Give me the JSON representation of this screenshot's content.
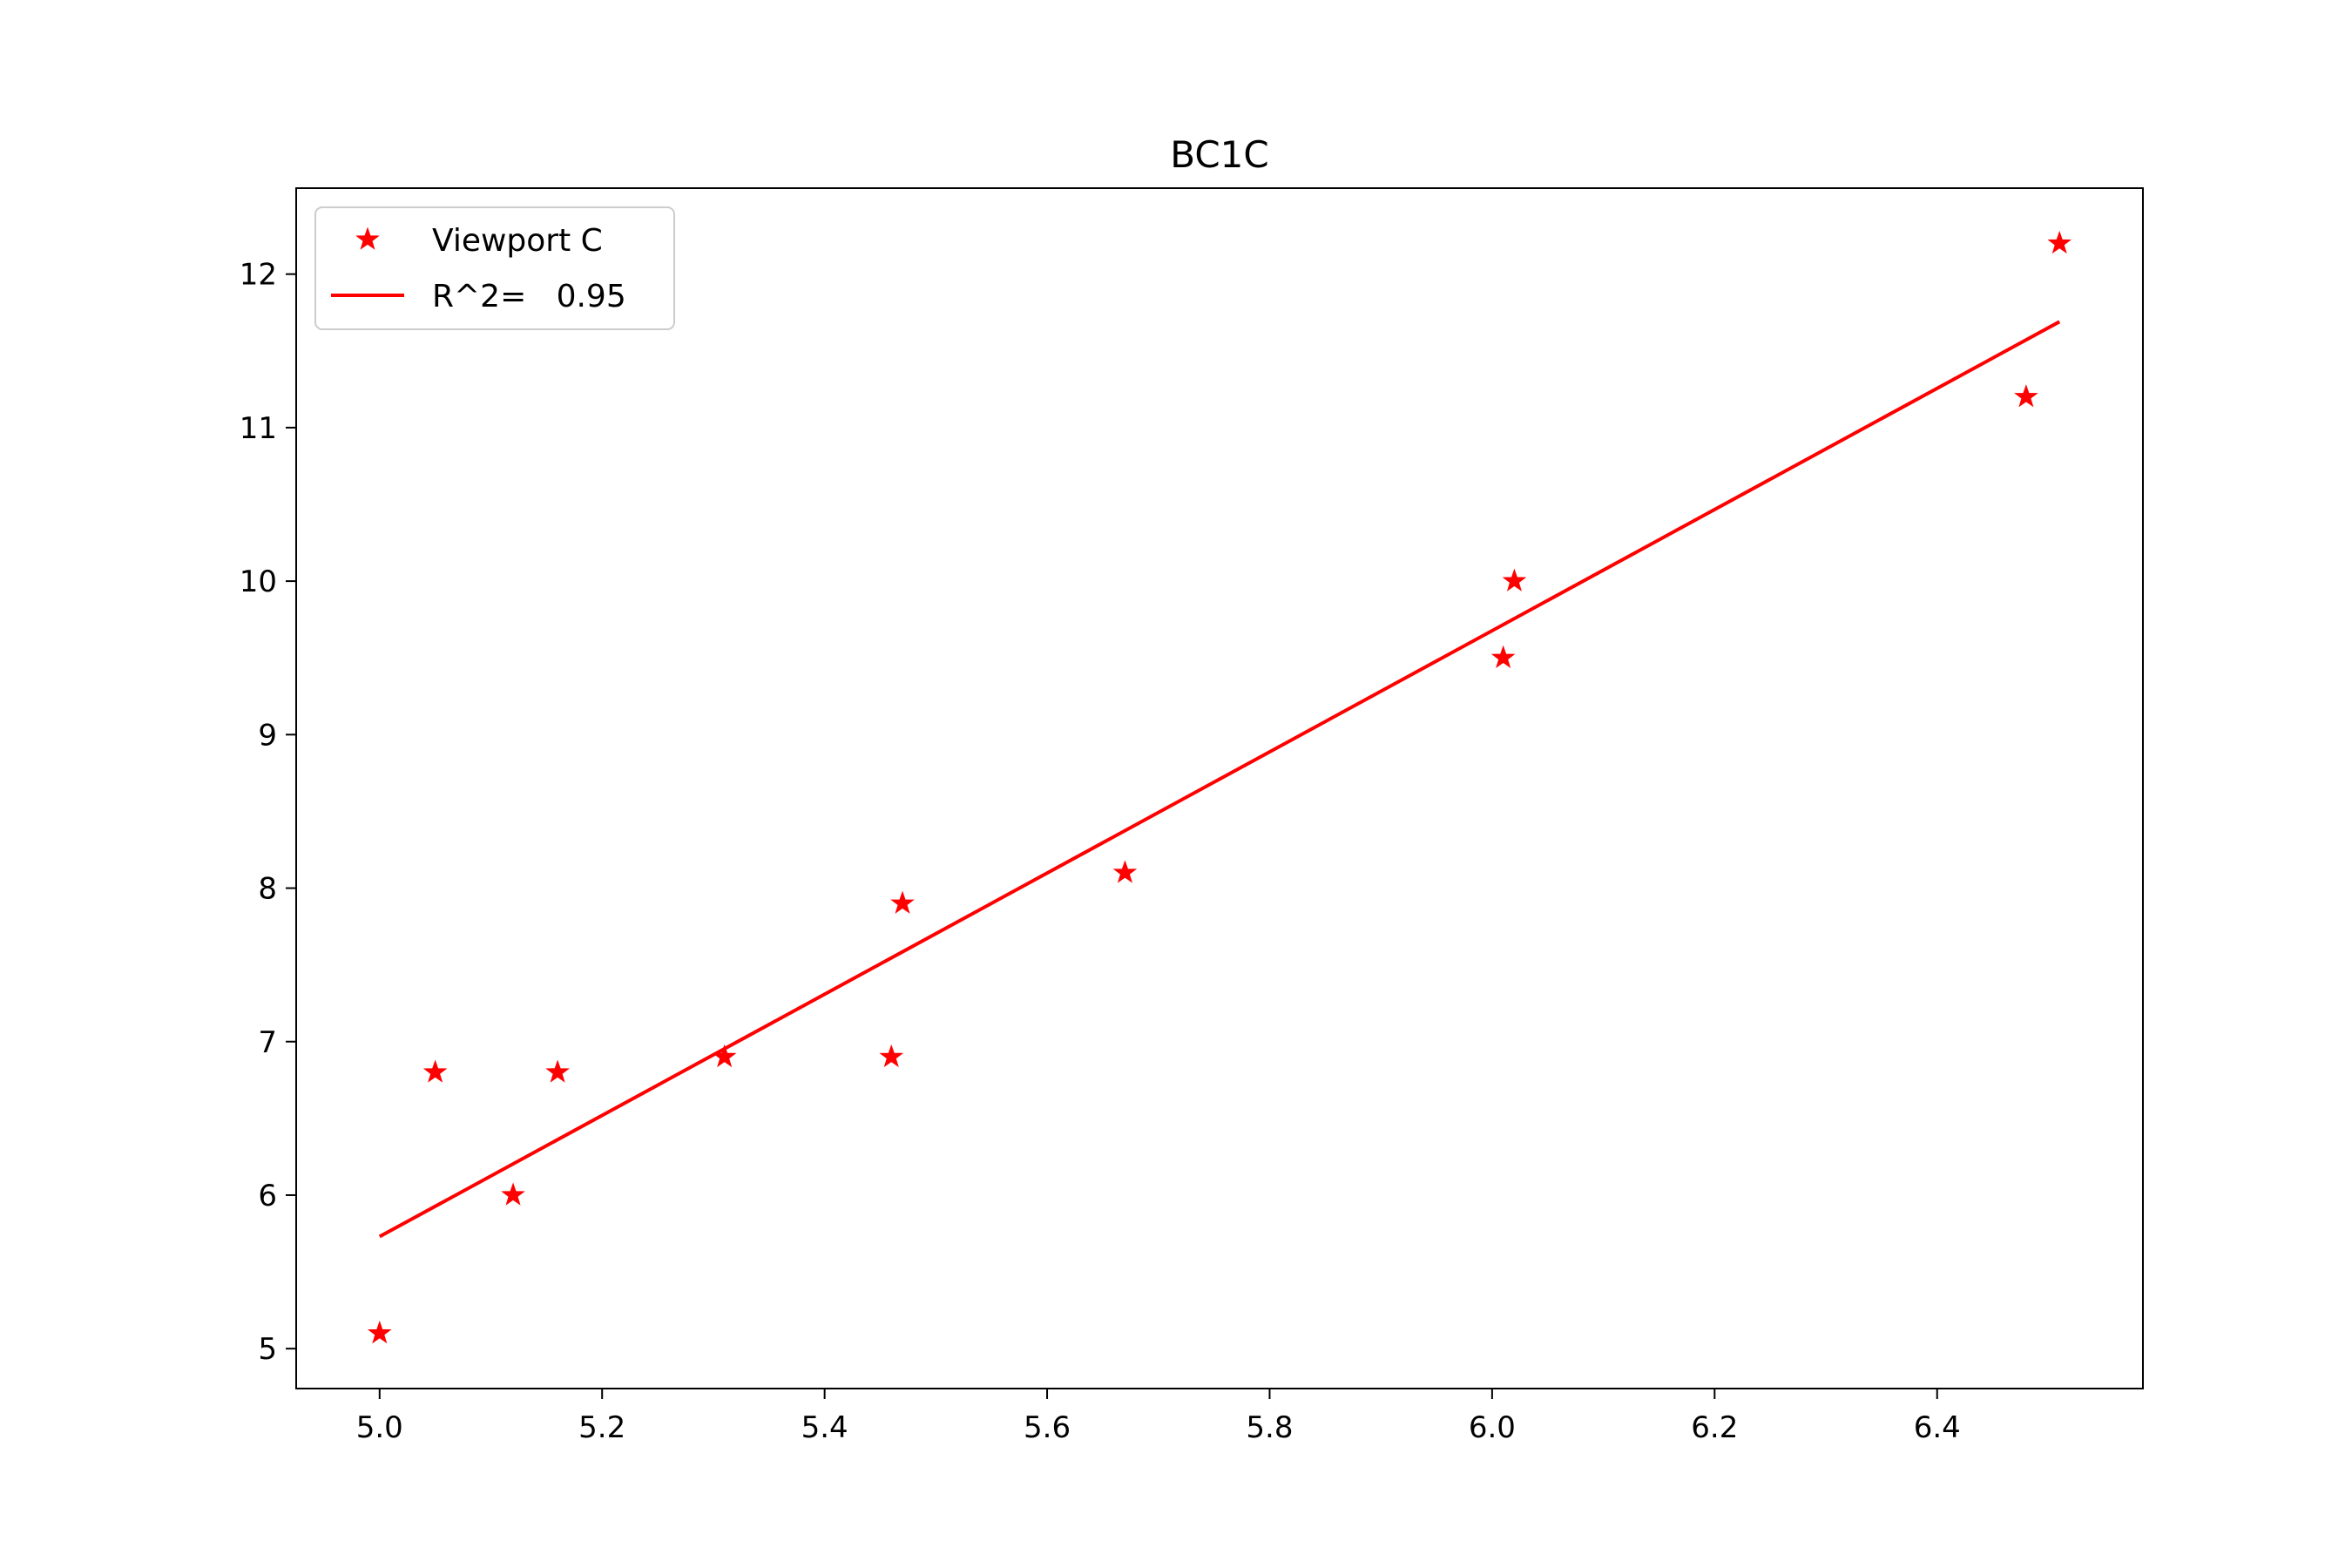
{
  "chart_data": {
    "type": "scatter",
    "title": "BC1C",
    "xlabel": "",
    "ylabel": "",
    "xlim": [
      4.925,
      6.585
    ],
    "ylim": [
      4.74,
      12.56
    ],
    "xticks": [
      5.0,
      5.2,
      5.4,
      5.6,
      5.8,
      6.0,
      6.2,
      6.4
    ],
    "xtick_labels": [
      "5.0",
      "5.2",
      "5.4",
      "5.6",
      "5.8",
      "6.0",
      "6.2",
      "6.4"
    ],
    "yticks": [
      5,
      6,
      7,
      8,
      9,
      10,
      11,
      12
    ],
    "ytick_labels": [
      "5",
      "6",
      "7",
      "8",
      "9",
      "10",
      "11",
      "12"
    ],
    "grid": false,
    "legend_position": "top-left",
    "color": "#ff0000",
    "series": [
      {
        "name": "Viewport C",
        "kind": "scatter",
        "marker": "star",
        "color": "#ff0000",
        "x": [
          5.0,
          5.05,
          5.12,
          5.16,
          5.31,
          5.46,
          5.47,
          5.67,
          6.01,
          6.02,
          6.48,
          6.51
        ],
        "y": [
          5.1,
          6.8,
          6.0,
          6.8,
          6.9,
          6.9,
          7.9,
          8.1,
          9.5,
          10.0,
          11.2,
          12.2
        ]
      },
      {
        "name": "R^2=   0.95",
        "kind": "line",
        "color": "#ff0000",
        "x": [
          5.0,
          6.51
        ],
        "y": [
          5.73,
          11.69
        ]
      }
    ]
  }
}
